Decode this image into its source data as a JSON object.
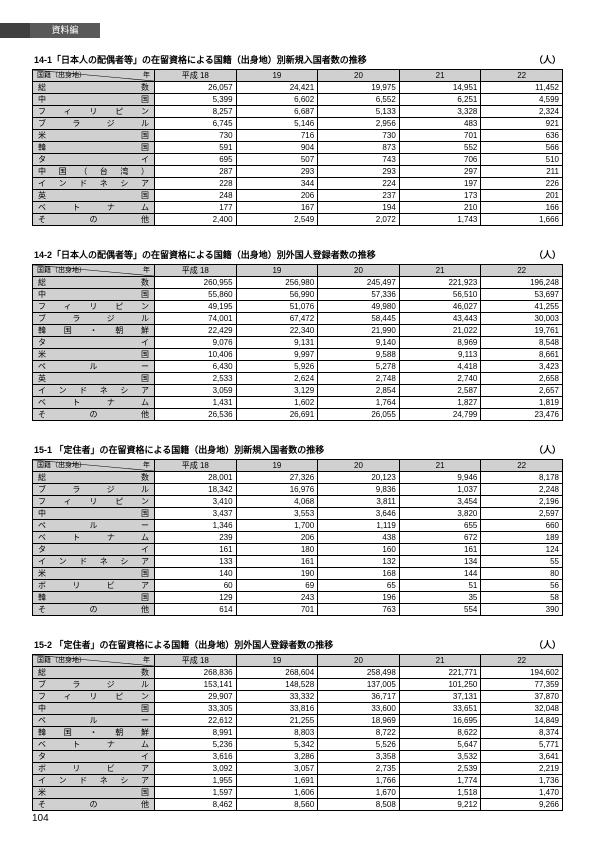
{
  "header_tab": "資料編",
  "page_number": "104",
  "unit_label": "（人）",
  "diag_top": "年",
  "diag_bot": "国籍（出身地）",
  "year_cols": [
    "平成 18",
    "19",
    "20",
    "21",
    "22"
  ],
  "tables": [
    {
      "title": "14-1「日本人の配偶者等」の在留資格による国籍（出身地）別新規入国者数の推移",
      "rows": [
        {
          "label": "総数",
          "v": [
            "26,057",
            "24,421",
            "19,975",
            "14,951",
            "11,452"
          ]
        },
        {
          "label": "中国",
          "v": [
            "5,399",
            "6,602",
            "6,552",
            "6,251",
            "4,599"
          ]
        },
        {
          "label": "フィリピン",
          "v": [
            "8,257",
            "6,687",
            "5,133",
            "3,328",
            "2,324"
          ]
        },
        {
          "label": "ブラジル",
          "v": [
            "6,745",
            "5,146",
            "2,956",
            "483",
            "921"
          ]
        },
        {
          "label": "米国",
          "v": [
            "730",
            "716",
            "730",
            "701",
            "636"
          ]
        },
        {
          "label": "韓国",
          "v": [
            "591",
            "904",
            "873",
            "552",
            "566"
          ]
        },
        {
          "label": "タイ",
          "v": [
            "695",
            "507",
            "743",
            "706",
            "510"
          ]
        },
        {
          "label": "中国（台湾）",
          "v": [
            "287",
            "293",
            "293",
            "297",
            "211"
          ]
        },
        {
          "label": "インドネシア",
          "v": [
            "228",
            "344",
            "224",
            "197",
            "226"
          ]
        },
        {
          "label": "英国",
          "v": [
            "248",
            "206",
            "237",
            "173",
            "201"
          ]
        },
        {
          "label": "ベトナム",
          "v": [
            "177",
            "167",
            "194",
            "210",
            "166"
          ]
        },
        {
          "label": "その他",
          "v": [
            "2,400",
            "2,549",
            "2,072",
            "1,743",
            "1,666"
          ]
        }
      ]
    },
    {
      "title": "14-2「日本人の配偶者等」の在留資格による国籍（出身地）別外国人登録者数の推移",
      "rows": [
        {
          "label": "総数",
          "v": [
            "260,955",
            "256,980",
            "245,497",
            "221,923",
            "196,248"
          ]
        },
        {
          "label": "中国",
          "v": [
            "55,860",
            "56,990",
            "57,336",
            "56,510",
            "53,697"
          ]
        },
        {
          "label": "フィリピン",
          "v": [
            "49,195",
            "51,076",
            "49,980",
            "46,027",
            "41,255"
          ]
        },
        {
          "label": "ブラジル",
          "v": [
            "74,001",
            "67,472",
            "58,445",
            "43,443",
            "30,003"
          ]
        },
        {
          "label": "韓国・朝鮮",
          "v": [
            "22,429",
            "22,340",
            "21,990",
            "21,022",
            "19,761"
          ]
        },
        {
          "label": "タイ",
          "v": [
            "9,076",
            "9,131",
            "9,140",
            "8,969",
            "8,548"
          ]
        },
        {
          "label": "米国",
          "v": [
            "10,406",
            "9,997",
            "9,588",
            "9,113",
            "8,661"
          ]
        },
        {
          "label": "ペルー",
          "v": [
            "6,430",
            "5,926",
            "5,278",
            "4,418",
            "3,423"
          ]
        },
        {
          "label": "英国",
          "v": [
            "2,533",
            "2,624",
            "2,748",
            "2,740",
            "2,658"
          ]
        },
        {
          "label": "インドネシア",
          "v": [
            "3,059",
            "3,129",
            "2,854",
            "2,587",
            "2,657"
          ]
        },
        {
          "label": "ベトナム",
          "v": [
            "1,431",
            "1,602",
            "1,764",
            "1,827",
            "1,819"
          ]
        },
        {
          "label": "その他",
          "v": [
            "26,536",
            "26,691",
            "26,055",
            "24,799",
            "23,476"
          ]
        }
      ]
    },
    {
      "title": "15-1 「定住者」の在留資格による国籍（出身地）別新規入国者数の推移",
      "rows": [
        {
          "label": "総数",
          "v": [
            "28,001",
            "27,326",
            "20,123",
            "9,946",
            "8,178"
          ]
        },
        {
          "label": "ブラジル",
          "v": [
            "18,342",
            "16,976",
            "9,836",
            "1,037",
            "2,248"
          ]
        },
        {
          "label": "フィリピン",
          "v": [
            "3,410",
            "4,068",
            "3,811",
            "3,454",
            "2,196"
          ]
        },
        {
          "label": "中国",
          "v": [
            "3,437",
            "3,553",
            "3,646",
            "3,820",
            "2,597"
          ]
        },
        {
          "label": "ペルー",
          "v": [
            "1,346",
            "1,700",
            "1,119",
            "655",
            "660"
          ]
        },
        {
          "label": "ベトナム",
          "v": [
            "239",
            "206",
            "438",
            "672",
            "189"
          ]
        },
        {
          "label": "タイ",
          "v": [
            "161",
            "180",
            "160",
            "161",
            "124"
          ]
        },
        {
          "label": "インドネシア",
          "v": [
            "133",
            "161",
            "132",
            "134",
            "55"
          ]
        },
        {
          "label": "米国",
          "v": [
            "140",
            "190",
            "168",
            "144",
            "80"
          ]
        },
        {
          "label": "ボリビア",
          "v": [
            "60",
            "69",
            "65",
            "51",
            "56"
          ]
        },
        {
          "label": "韓国",
          "v": [
            "129",
            "243",
            "196",
            "35",
            "58"
          ]
        },
        {
          "label": "その他",
          "v": [
            "614",
            "701",
            "763",
            "554",
            "390"
          ]
        }
      ]
    },
    {
      "title": "15-2 「定住者」の在留資格による国籍（出身地）別外国人登録者数の推移",
      "rows": [
        {
          "label": "総数",
          "v": [
            "268,836",
            "268,604",
            "258,498",
            "221,771",
            "194,602"
          ]
        },
        {
          "label": "ブラジル",
          "v": [
            "153,141",
            "148,528",
            "137,005",
            "101,250",
            "77,359"
          ]
        },
        {
          "label": "フィリピン",
          "v": [
            "29,907",
            "33,332",
            "36,717",
            "37,131",
            "37,870"
          ]
        },
        {
          "label": "中国",
          "v": [
            "33,305",
            "33,816",
            "33,600",
            "33,651",
            "32,048"
          ]
        },
        {
          "label": "ペルー",
          "v": [
            "22,612",
            "21,255",
            "18,969",
            "16,695",
            "14,849"
          ]
        },
        {
          "label": "韓国・朝鮮",
          "v": [
            "8,991",
            "8,803",
            "8,722",
            "8,622",
            "8,374"
          ]
        },
        {
          "label": "ベトナム",
          "v": [
            "5,236",
            "5,342",
            "5,526",
            "5,647",
            "5,771"
          ]
        },
        {
          "label": "タイ",
          "v": [
            "3,616",
            "3,286",
            "3,358",
            "3,532",
            "3,641"
          ]
        },
        {
          "label": "ボリビア",
          "v": [
            "3,092",
            "3,057",
            "2,735",
            "2,539",
            "2,219"
          ]
        },
        {
          "label": "インドネシア",
          "v": [
            "1,955",
            "1,691",
            "1,766",
            "1,774",
            "1,736"
          ]
        },
        {
          "label": "米国",
          "v": [
            "1,597",
            "1,606",
            "1,670",
            "1,518",
            "1,470"
          ]
        },
        {
          "label": "その他",
          "v": [
            "8,462",
            "8,560",
            "8,508",
            "9,212",
            "9,266"
          ]
        }
      ]
    }
  ]
}
